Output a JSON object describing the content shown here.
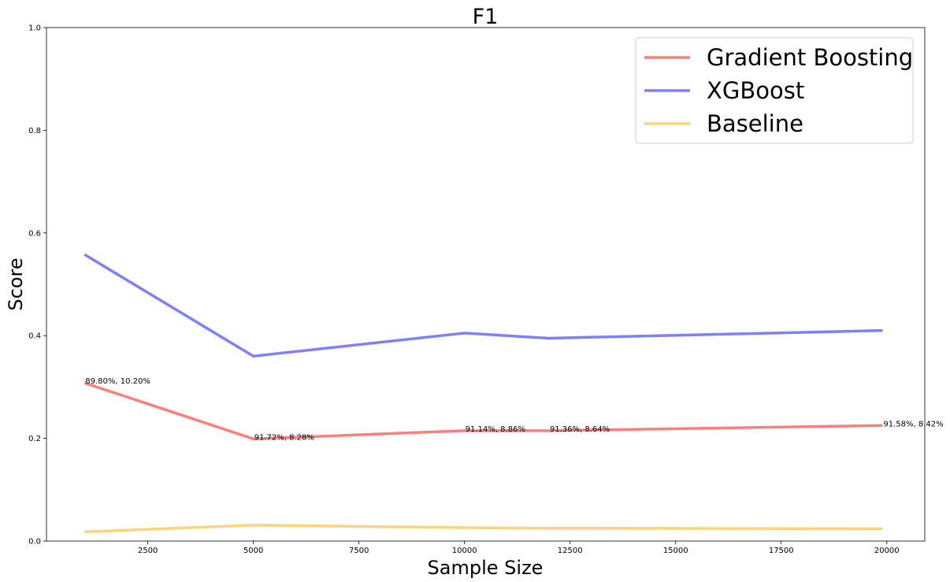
{
  "chart_data": {
    "type": "line",
    "title": "F1",
    "xlabel": "Sample Size",
    "ylabel": "Score",
    "xlim": [
      100,
      20900
    ],
    "ylim": [
      0.0,
      1.0
    ],
    "xticks": [
      2500,
      5000,
      7500,
      10000,
      12500,
      15000,
      17500,
      20000
    ],
    "yticks": [
      0.0,
      0.2,
      0.4,
      0.6,
      0.8,
      1.0
    ],
    "xtick_labels": [
      "2500",
      "5000",
      "7500",
      "10000",
      "12500",
      "15000",
      "17500",
      "20000"
    ],
    "ytick_labels": [
      "0.0",
      "0.2",
      "0.4",
      "0.6",
      "0.8",
      "1.0"
    ],
    "x": [
      1000,
      5000,
      10000,
      12000,
      19900
    ],
    "series": [
      {
        "name": "Gradient Boosting",
        "color": "#ff7f7f",
        "values": [
          0.308,
          0.199,
          0.215,
          0.215,
          0.225
        ],
        "annotations": [
          "89.80%, 10.20%",
          "91.72%, 8.28%",
          "91.14%, 8.86%",
          "91.36%, 8.64%",
          "91.58%, 8.42%"
        ]
      },
      {
        "name": "XGBoost",
        "color": "#7f7fff",
        "values": [
          0.558,
          0.36,
          0.405,
          0.395,
          0.41
        ]
      },
      {
        "name": "Baseline",
        "color": "#ffd27f",
        "values": [
          0.018,
          0.031,
          0.026,
          0.025,
          0.024
        ]
      }
    ],
    "grid": false,
    "legend_position": "top-right"
  }
}
